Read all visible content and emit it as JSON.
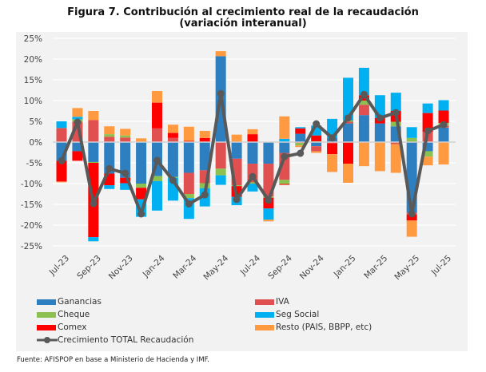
{
  "chart_data": {
    "type": "bar",
    "stacked": true,
    "title": "Figura 7.  Contribución al crecimiento real de la recaudación",
    "subtitle": "(variación interanual)",
    "xlabel": "",
    "ylabel": "",
    "ylim": [
      -25,
      25
    ],
    "yticks": [
      25,
      20,
      15,
      10,
      5,
      0,
      -5,
      -10,
      -15,
      -20,
      -25
    ],
    "ytick_labels": [
      "25%",
      "20%",
      "15%",
      "10%",
      "5%",
      "0%",
      "-5%",
      "-10%",
      "-15%",
      "-20%",
      "-25%"
    ],
    "grid": true,
    "legend_position": "bottom",
    "categories": [
      "Jul-23",
      "Aug-23",
      "Sep-23",
      "Oct-23",
      "Nov-23",
      "Dec-23",
      "Jan-24",
      "Feb-24",
      "Mar-24",
      "Apr-24",
      "May-24",
      "Jun-24",
      "Jul-24",
      "Aug-24",
      "Sep-24",
      "Oct-24",
      "Nov-24",
      "Dec-24",
      "Jan-25",
      "Feb-25",
      "Mar-25",
      "Apr-25",
      "May-25",
      "Jun-25",
      "Jul-25"
    ],
    "xtick_labels": [
      "Jul-23",
      "Sep-23",
      "Nov-23",
      "Jan-24",
      "Mar-24",
      "May-24",
      "Jul-24",
      "Sep-24",
      "Nov-24",
      "Jan-25",
      "Mar-25",
      "May-25",
      "Jul-25"
    ],
    "series": [
      {
        "name": "Ganancias",
        "color": "#2e7fc0",
        "values": [
          -4.5,
          -2.2,
          -4.8,
          -7.6,
          -8.6,
          -10.0,
          -8.2,
          -8.4,
          -7.4,
          -6.8,
          20.7,
          -4.0,
          -5.2,
          -5.2,
          -2.6,
          2.0,
          -1.0,
          1.0,
          4.5,
          6.5,
          4.5,
          3.8,
          -17.0,
          -2.2,
          3.5
        ]
      },
      {
        "name": "IVA",
        "color": "#e05050",
        "values": [
          3.4,
          4.9,
          5.3,
          1.3,
          1.1,
          0,
          3.3,
          1.0,
          -5.1,
          -3.1,
          -6.4,
          -6.4,
          -4.5,
          -7.9,
          -6.5,
          -0.2,
          -1.2,
          -0.3,
          0.4,
          2.5,
          0,
          -0.5,
          -0.5,
          2.5,
          0.5
        ]
      },
      {
        "name": "Cheque",
        "color": "#8cc050",
        "values": [
          0,
          0.6,
          -0.2,
          0.6,
          0.5,
          -1.0,
          -1.2,
          -0.2,
          -1.0,
          -1.2,
          -1.6,
          -0.2,
          -0.3,
          -0.3,
          -1.0,
          -0.6,
          0.2,
          0,
          0.3,
          1.0,
          0,
          1.1,
          1.0,
          -1.3,
          0.6
        ]
      },
      {
        "name": "Comex",
        "color": "#ff0000",
        "values": [
          -5.0,
          -2.3,
          -17.9,
          -2.8,
          -1.3,
          -2.8,
          6.2,
          1.2,
          0.3,
          1.0,
          0,
          -2.6,
          1.9,
          -2.6,
          -0.2,
          1.3,
          1.4,
          -2.6,
          -5.2,
          1.3,
          1.3,
          2.6,
          -1.4,
          4.5,
          3.0
        ]
      },
      {
        "name": "Seg Social",
        "color": "#00b0f0",
        "values": [
          1.6,
          0.6,
          -1.0,
          -0.9,
          -1.6,
          -4.2,
          -7.1,
          -5.5,
          -5.0,
          -4.4,
          -2.3,
          -2.0,
          -1.9,
          -2.7,
          0.8,
          0.3,
          2.4,
          4.6,
          10.3,
          6.6,
          5.5,
          4.4,
          2.6,
          2.3,
          2.5
        ]
      },
      {
        "name": "Resto (PAIS, BBPP, etc)",
        "color": "#ff9a40",
        "values": [
          -0.2,
          2.1,
          2.2,
          1.9,
          1.6,
          0.9,
          2.8,
          2.0,
          3.4,
          1.7,
          1.2,
          1.8,
          1.2,
          -0.4,
          5.4,
          -0.4,
          -0.4,
          -4.3,
          -4.6,
          -5.8,
          -7.0,
          -6.9,
          -3.9,
          -2.1,
          -5.4
        ]
      }
    ],
    "line": {
      "name": "Crecimiento TOTAL Recaudación",
      "color": "#595959",
      "values": [
        -4.5,
        4.8,
        -14.8,
        -6.4,
        -7.5,
        -17.3,
        -4.4,
        -9.2,
        -14.9,
        -12.7,
        11.7,
        -13.8,
        -8.3,
        -14.0,
        -3.5,
        -2.7,
        4.4,
        1.0,
        5.8,
        11.5,
        5.8,
        7.1,
        -17.3,
        2.7,
        4.2
      ]
    }
  },
  "legend": {
    "items": [
      {
        "label": "Ganancias",
        "color": "#2e7fc0"
      },
      {
        "label": "IVA",
        "color": "#e05050"
      },
      {
        "label": "Cheque",
        "color": "#8cc050"
      },
      {
        "label": "Seg Social",
        "color": "#00b0f0"
      },
      {
        "label": "Comex",
        "color": "#ff0000"
      },
      {
        "label": "Resto (PAIS, BBPP, etc)",
        "color": "#ff9a40"
      },
      {
        "label": "Crecimiento TOTAL Recaudación",
        "color": "#595959"
      }
    ]
  },
  "footer": {
    "source": "Fuente: AFISPOP en base a Ministerio de Hacienda y IMF."
  }
}
